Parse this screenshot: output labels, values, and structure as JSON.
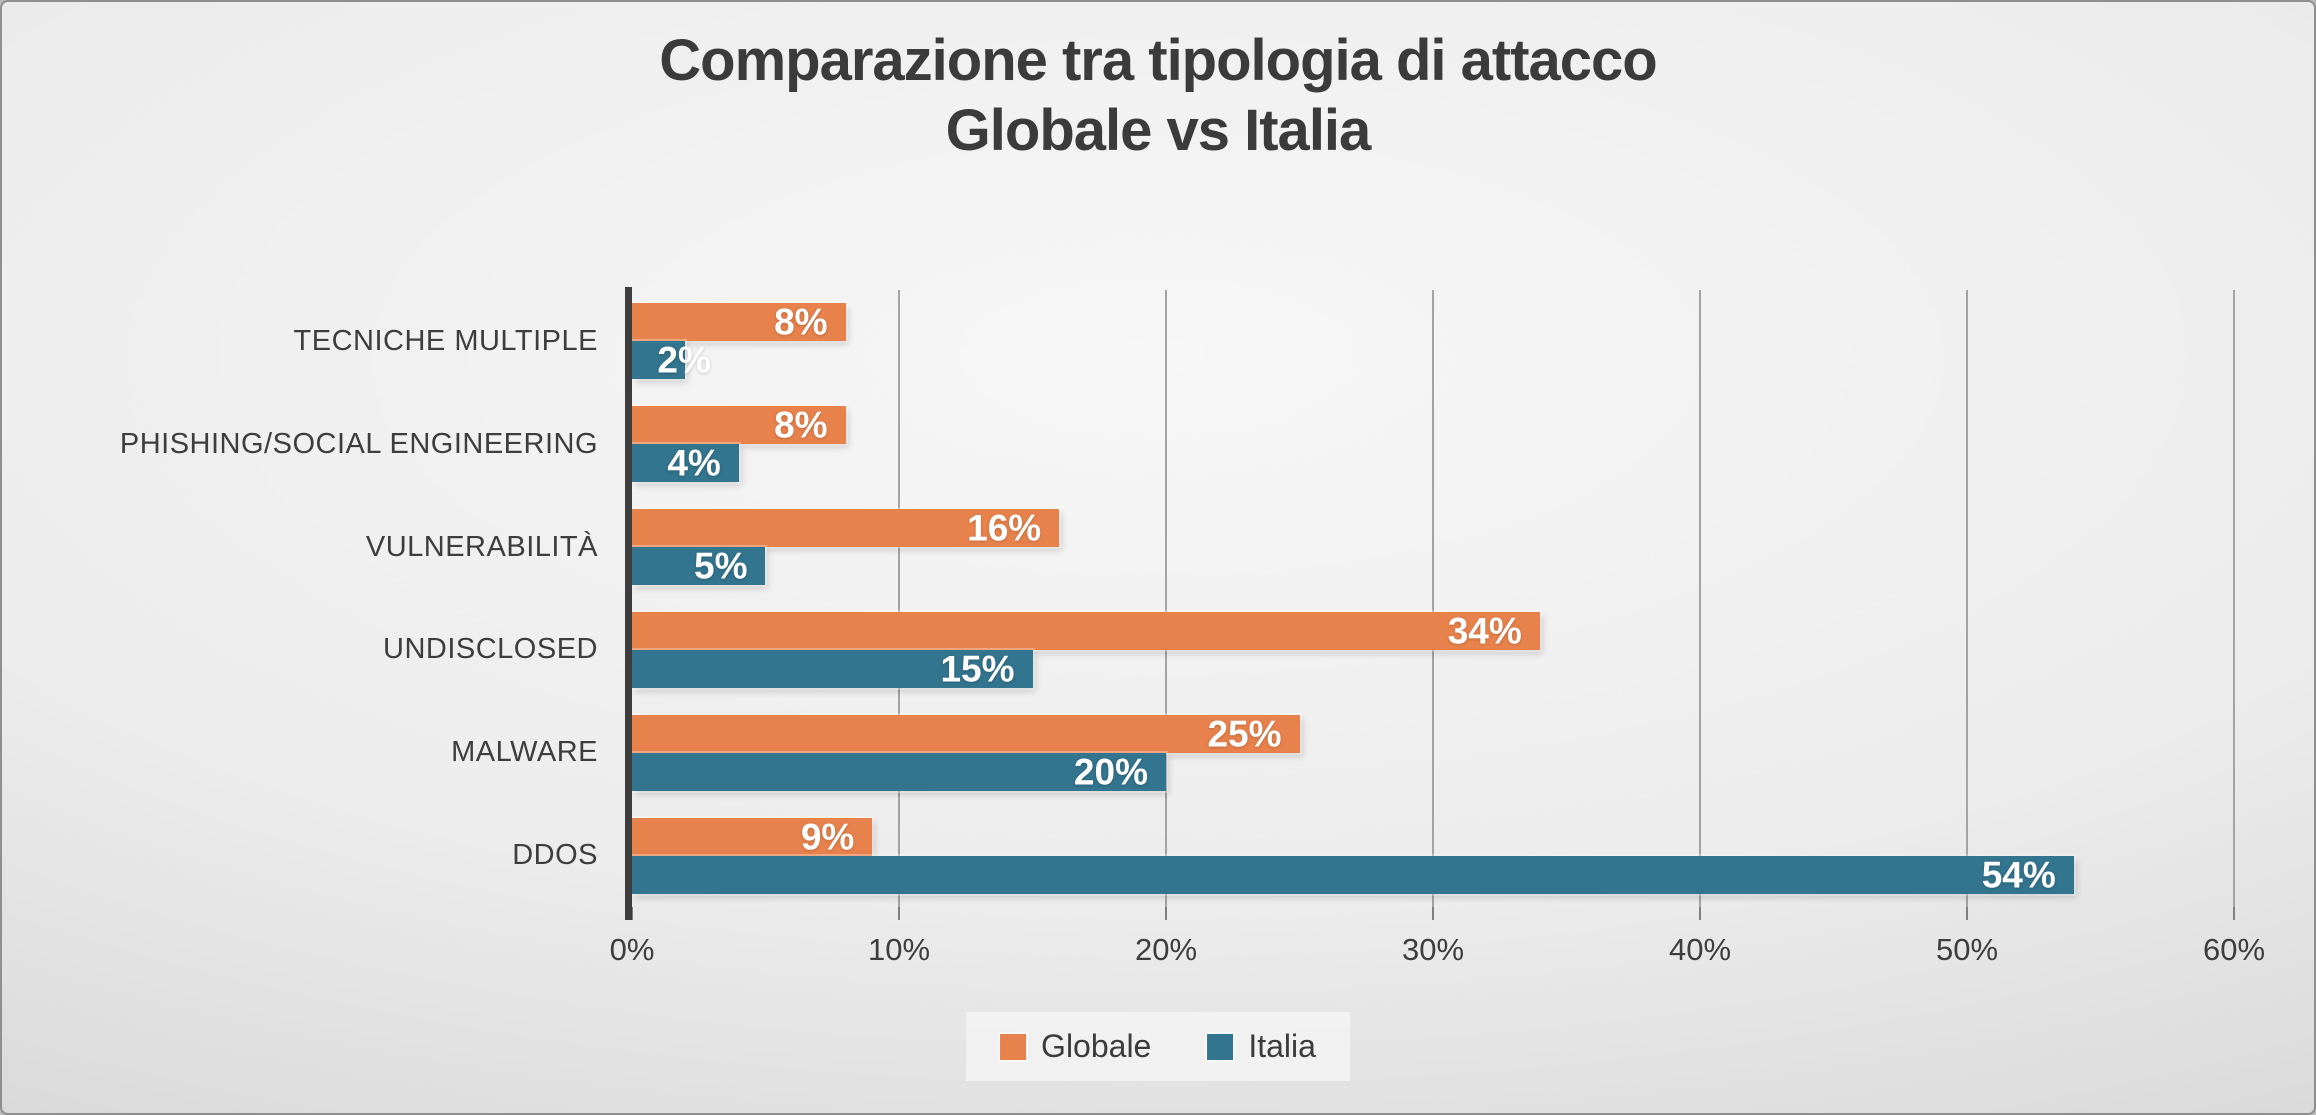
{
  "chart_data": {
    "type": "bar",
    "orientation": "horizontal",
    "title_line1": "Comparazione tra tipologia di attacco",
    "title_line2": "Globale vs Italia",
    "categories": [
      "TECNICHE MULTIPLE",
      "PHISHING/SOCIAL ENGINEERING",
      "VULNERABILITÀ",
      "UNDISCLOSED",
      "MALWARE",
      "DDOS"
    ],
    "series": [
      {
        "name": "Globale",
        "color": "#E8824C",
        "values": [
          8,
          8,
          16,
          34,
          25,
          9
        ]
      },
      {
        "name": "Italia",
        "color": "#33748E",
        "values": [
          2,
          4,
          5,
          15,
          20,
          54
        ]
      }
    ],
    "value_suffix": "%",
    "xlim": [
      0,
      60
    ],
    "x_tick_labels": [
      "0%",
      "10%",
      "20%",
      "30%",
      "40%",
      "50%",
      "60%"
    ],
    "grid": true,
    "legend_position": "bottom",
    "data_label_position": "inside-end",
    "colors": {
      "title_text": "#3b3b3b",
      "axis_text": "#3d3d3d",
      "axis_line": "#3d3d3d",
      "gridline": "#a3a3a3",
      "data_label_text": "#ffffff"
    }
  }
}
